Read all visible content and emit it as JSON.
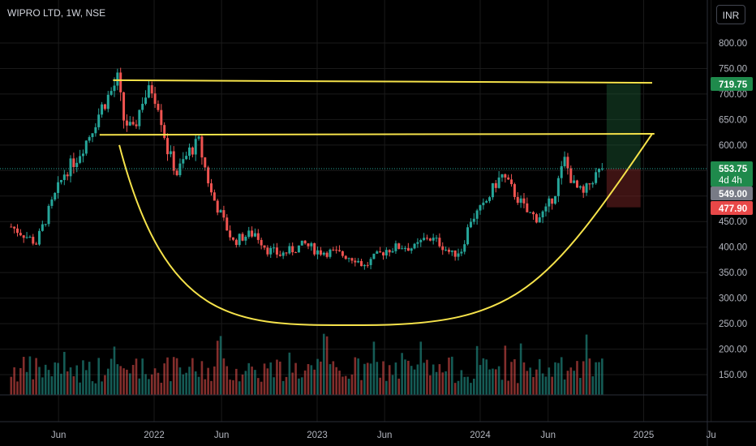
{
  "header": {
    "symbol_title": "WIPRO LTD, 1W, NSE",
    "currency_button": "INR"
  },
  "colors": {
    "up": "#26a69a",
    "down": "#ef5350",
    "pattern": "#f5e24a",
    "grid": "#1a1a1a",
    "axis_text": "#b2b5be",
    "green_badge": "#1f8a4c",
    "red_badge": "#e84848",
    "gray_badge": "#787b86"
  },
  "chart_data": {
    "type": "candlestick",
    "title": "WIPRO LTD, 1W, NSE",
    "y_axis": {
      "ticks": [
        "800.00",
        "750.00",
        "700.00",
        "650.00",
        "600.00",
        "550.00",
        "500.00",
        "450.00",
        "400.00",
        "350.00",
        "300.00",
        "250.00",
        "200.00",
        "150.00"
      ],
      "range": [
        110,
        840
      ]
    },
    "x_axis": {
      "ticks": [
        "Jun",
        "2022",
        "Jun",
        "2023",
        "Jun",
        "2024",
        "Jun",
        "2025",
        "Ju"
      ]
    },
    "price_badges": [
      {
        "label": "719.75",
        "value": 719.75,
        "style": "green"
      },
      {
        "label": "553.75",
        "sublabel": "4d 4h",
        "value": 553.75,
        "style": "green"
      },
      {
        "label": "549.00",
        "value": 549.0,
        "style": "gray"
      },
      {
        "label": "477.90",
        "value": 477.9,
        "style": "red"
      }
    ],
    "last_price": 553.75,
    "resistance_lines": [
      {
        "from_date": "2021-10-01",
        "to_date": "2025-01-20",
        "from_price": 727,
        "to_price": 722
      },
      {
        "from_date": "2021-09-01",
        "to_date": "2025-01-25",
        "from_price": 620,
        "to_price": 622
      }
    ],
    "cup_curve": {
      "start": [
        "2021-10-15",
        600
      ],
      "bottom": [
        "2023-04-15",
        247
      ],
      "end": [
        "2025-01-20",
        622
      ]
    },
    "risk_reward": {
      "start_date": "2024-10-10",
      "end_date": "2024-12-25",
      "entry": 553.75,
      "target": 719.75,
      "stop": 477.9
    },
    "candle_pivots": [
      [
        "2021-02-15",
        440
      ],
      [
        "2021-03-15",
        425
      ],
      [
        "2021-04-12",
        408
      ],
      [
        "2021-05-10",
        470
      ],
      [
        "2021-06-14",
        545
      ],
      [
        "2021-07-12",
        575
      ],
      [
        "2021-08-09",
        620
      ],
      [
        "2021-09-06",
        675
      ],
      [
        "2021-09-27",
        705
      ],
      [
        "2021-10-11",
        728
      ],
      [
        "2021-10-25",
        650
      ],
      [
        "2021-11-15",
        625
      ],
      [
        "2021-12-06",
        690
      ],
      [
        "2021-12-27",
        710
      ],
      [
        "2022-01-10",
        682
      ],
      [
        "2022-01-31",
        590
      ],
      [
        "2022-02-21",
        545
      ],
      [
        "2022-03-21",
        588
      ],
      [
        "2022-04-11",
        605
      ],
      [
        "2022-05-09",
        505
      ],
      [
        "2022-06-06",
        450
      ],
      [
        "2022-06-27",
        410
      ],
      [
        "2022-07-18",
        420
      ],
      [
        "2022-08-15",
        428
      ],
      [
        "2022-09-12",
        395
      ],
      [
        "2022-10-10",
        385
      ],
      [
        "2022-11-07",
        395
      ],
      [
        "2022-12-05",
        405
      ],
      [
        "2023-01-02",
        392
      ],
      [
        "2023-01-30",
        390
      ],
      [
        "2023-02-27",
        385
      ],
      [
        "2023-03-27",
        378
      ],
      [
        "2023-04-17",
        362
      ],
      [
        "2023-05-08",
        378
      ],
      [
        "2023-06-05",
        395
      ],
      [
        "2023-07-10",
        402
      ],
      [
        "2023-08-07",
        398
      ],
      [
        "2023-09-04",
        420
      ],
      [
        "2023-10-02",
        408
      ],
      [
        "2023-10-30",
        385
      ],
      [
        "2023-11-20",
        395
      ],
      [
        "2023-12-11",
        455
      ],
      [
        "2024-01-08",
        478
      ],
      [
        "2024-02-05",
        525
      ],
      [
        "2024-02-19",
        540
      ],
      [
        "2024-03-18",
        505
      ],
      [
        "2024-04-15",
        468
      ],
      [
        "2024-05-06",
        458
      ],
      [
        "2024-05-27",
        470
      ],
      [
        "2024-06-17",
        510
      ],
      [
        "2024-07-08",
        570
      ],
      [
        "2024-07-29",
        520
      ],
      [
        "2024-08-19",
        502
      ],
      [
        "2024-09-09",
        535
      ],
      [
        "2024-09-30",
        553
      ]
    ],
    "volume": {
      "unit": "relative",
      "max_pixel_scale": 1
    }
  }
}
